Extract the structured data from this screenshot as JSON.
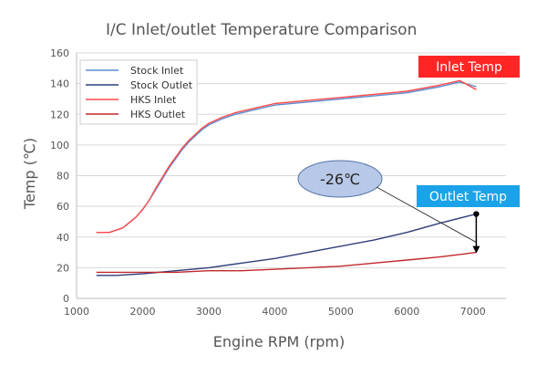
{
  "chart_data": {
    "type": "line",
    "title": "I/C Inlet/outlet Temperature Comparison",
    "xlabel": "Engine RPM (rpm)",
    "ylabel": "Temp (℃)",
    "xlim": [
      1000,
      7500
    ],
    "ylim": [
      0,
      160
    ],
    "xticks": [
      1000,
      2000,
      3000,
      4000,
      5000,
      6000,
      7000
    ],
    "yticks": [
      0,
      20,
      40,
      60,
      80,
      100,
      120,
      140,
      160
    ],
    "grid": "horizontal",
    "legend_position": "top-left",
    "series": [
      {
        "name": "Stock Inlet",
        "color": "#5b8bd0",
        "x": [
          1300,
          1500,
          1700,
          1900,
          2000,
          2100,
          2200,
          2300,
          2400,
          2500,
          2600,
          2700,
          2800,
          2900,
          3000,
          3200,
          3400,
          3600,
          3800,
          4000,
          4500,
          5000,
          5500,
          6000,
          6500,
          6800,
          7050
        ],
        "y": [
          43,
          43,
          46,
          53,
          58,
          64,
          71,
          78,
          85,
          91,
          97,
          102,
          106,
          110,
          113,
          117,
          120,
          122,
          124,
          126,
          128,
          130,
          132,
          134,
          138,
          141,
          138
        ]
      },
      {
        "name": "Stock Outlet",
        "color": "#2f3d7a",
        "x": [
          1300,
          1600,
          2000,
          2500,
          3000,
          3500,
          4000,
          4500,
          5000,
          5500,
          6000,
          6500,
          7050
        ],
        "y": [
          15,
          15,
          16,
          18,
          20,
          23,
          26,
          30,
          34,
          38,
          43,
          49,
          55
        ]
      },
      {
        "name": "HKS Inlet",
        "color": "#ff4a4a",
        "x": [
          1300,
          1500,
          1700,
          1900,
          2000,
          2100,
          2200,
          2300,
          2400,
          2500,
          2600,
          2700,
          2800,
          2900,
          3000,
          3200,
          3400,
          3600,
          3800,
          4000,
          4500,
          5000,
          5500,
          6000,
          6500,
          6800,
          7050
        ],
        "y": [
          43,
          43,
          46,
          53,
          58,
          64,
          72,
          79,
          86,
          92,
          98,
          103,
          107,
          111,
          114,
          118,
          121,
          123,
          125,
          127,
          129,
          131,
          133,
          135,
          139,
          142,
          136
        ]
      },
      {
        "name": "HKS Outlet",
        "color": "#c0282d",
        "x": [
          1300,
          2000,
          2500,
          3000,
          3500,
          4000,
          4500,
          5000,
          5500,
          6000,
          6500,
          7050
        ],
        "y": [
          17,
          17,
          17,
          18,
          18,
          19,
          20,
          21,
          23,
          25,
          27,
          30
        ]
      }
    ],
    "annotations": {
      "inlet_label": "Inlet Temp",
      "outlet_label": "Outlet Temp",
      "difference_label": "-26℃",
      "difference_rpm": 7050,
      "difference_from": 55,
      "difference_to": 30,
      "inlet_label_color": "#ff2525",
      "outlet_label_color": "#1aa3e8",
      "bubble_color": "#b8c8e8"
    }
  }
}
